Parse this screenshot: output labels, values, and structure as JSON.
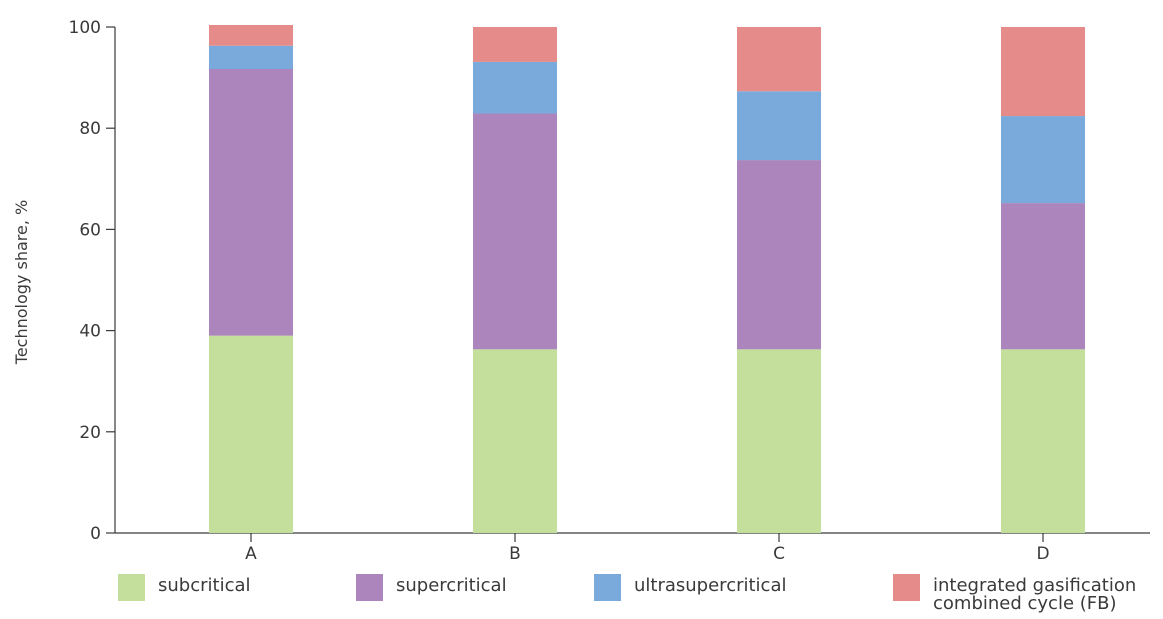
{
  "chart_data": {
    "type": "bar",
    "stacked": true,
    "categories": [
      "A",
      "B",
      "C",
      "D"
    ],
    "series": [
      {
        "name": "subcritical",
        "color": "#c4df9b",
        "values": [
          39,
          36.3,
          36.3,
          36.3
        ]
      },
      {
        "name": "supercritical",
        "color": "#ab85bb",
        "values": [
          52.7,
          46.6,
          37.4,
          28.9
        ]
      },
      {
        "name": "ultrasupercritical",
        "color": "#7aaadb",
        "values": [
          4.6,
          10.2,
          13.6,
          17.2
        ]
      },
      {
        "name": "integrated gasification\ncombined cycle (FB)",
        "color": "#e58c8a",
        "values": [
          4.1,
          6.9,
          12.7,
          17.6
        ]
      }
    ],
    "title": "",
    "xlabel": "",
    "ylabel": "Technology share, %",
    "ylim": [
      0,
      100
    ],
    "yticks": [
      0,
      20,
      40,
      60,
      80,
      100
    ],
    "grid": false,
    "legend_position": "bottom"
  }
}
